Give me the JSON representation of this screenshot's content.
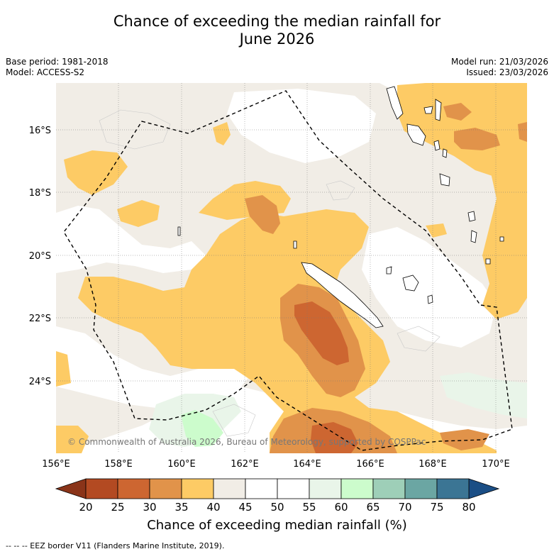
{
  "title_line1": "Chance of exceeding the median rainfall for",
  "title_line2": "June 2026",
  "meta": {
    "base_period": "Base period: 1981-2018",
    "model": "Model: ACCESS-S2",
    "model_run": "Model run: 21/03/2026",
    "issued": "Issued: 23/03/2026"
  },
  "map": {
    "lon_labels": [
      "156°E",
      "158°E",
      "160°E",
      "162°E",
      "164°E",
      "166°E",
      "168°E",
      "170°E"
    ],
    "lat_labels": [
      "16°S",
      "18°S",
      "20°S",
      "22°S",
      "24°S"
    ],
    "copyright": "© Commonwealth of Australia 2026, Bureau of Meteorology, supported by COSPPac"
  },
  "colorbar": {
    "ticks": [
      "20",
      "25",
      "30",
      "35",
      "40",
      "45",
      "50",
      "55",
      "60",
      "65",
      "70",
      "75",
      "80"
    ],
    "colors": [
      "#b34a22",
      "#cd6631",
      "#e1934a",
      "#fdcb65",
      "#f1ede6",
      "#ffffff",
      "#ffffff",
      "#e9f5e9",
      "#ccfccc",
      "#9ecfb8",
      "#6ba6a3",
      "#3b7594"
    ],
    "under_color": "#8a3419",
    "over_color": "#1a4e85",
    "title": "Chance of exceeding median rainfall (%)"
  },
  "footnote": "--  --  -- EEZ border V11 (Flanders Marine Institute, 2019)."
}
